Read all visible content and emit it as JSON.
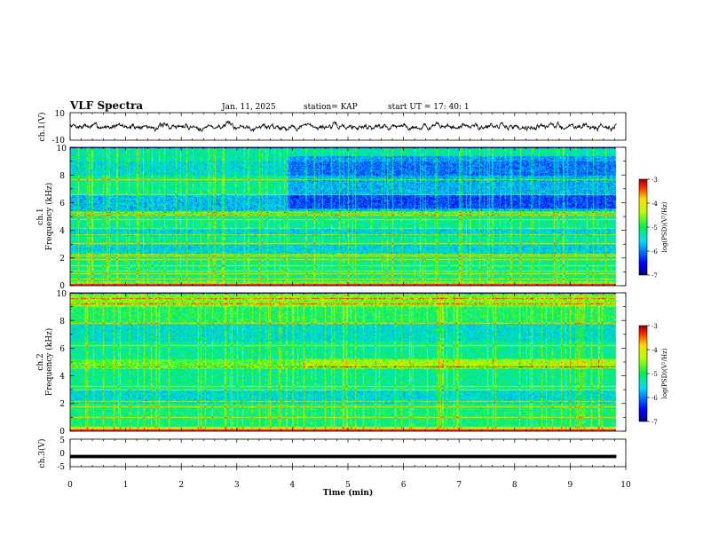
{
  "header": {
    "title": "VLF Spectra",
    "date": "Jan. 11, 2025",
    "station": "station= KAP",
    "start_ut": "start  UT =   17: 40: 1"
  },
  "chart_data": [
    {
      "type": "line",
      "name": "ch1-waveform",
      "ylabel": "ch.1(V)",
      "ylim": [
        -10,
        10
      ],
      "ytick_labels": [
        "10",
        "-10"
      ],
      "xlim": [
        0,
        10
      ],
      "data_end_min": 9.83,
      "noise": {
        "center": 0,
        "amplitude": 5,
        "seed": 7
      }
    },
    {
      "type": "heatmap",
      "name": "ch1-spectrogram",
      "ylabel": "Frequency (kHz)",
      "channel_label": "ch.1",
      "ylim": [
        0,
        10
      ],
      "ytick_labels": [
        "0",
        "2",
        "4",
        "6",
        "8",
        "10"
      ],
      "xlim": [
        0,
        10
      ],
      "data_end_min": 9.83,
      "colorbar": {
        "label": "log(PSD)(V²/Hz)",
        "range": [
          -7,
          -3
        ],
        "tick_labels": [
          "-3",
          "-4",
          "-5",
          "-6",
          "-7"
        ]
      },
      "bands": [
        {
          "from": 0.0,
          "to": 0.35,
          "level": -4.6
        },
        {
          "from": 0.35,
          "to": 2.3,
          "level": -5.15
        },
        {
          "from": 2.3,
          "to": 3.0,
          "level": -5.55
        },
        {
          "from": 3.0,
          "to": 3.6,
          "level": -5.25
        },
        {
          "from": 3.6,
          "to": 4.2,
          "level": -5.55
        },
        {
          "from": 4.2,
          "to": 5.1,
          "level": -5.2
        },
        {
          "from": 5.1,
          "to": 5.4,
          "level": -4.9
        },
        {
          "from": 5.4,
          "to": 6.6,
          "level": -5.7
        },
        {
          "from": 6.6,
          "to": 8.0,
          "level": -5.2
        },
        {
          "from": 8.0,
          "to": 9.0,
          "level": -5.5
        },
        {
          "from": 9.0,
          "to": 10.0,
          "level": -5.3
        }
      ],
      "lines": [
        0.5,
        0.9,
        1.1,
        1.5,
        1.9,
        2.15,
        2.3,
        3.05,
        3.7,
        4.15,
        4.8,
        5.1,
        5.3,
        6.6,
        7.7
      ],
      "late_shift": {
        "from_min": 3.9,
        "from_khz": 5.6,
        "to_khz": 9.4,
        "delta": -0.55
      },
      "spikes": [
        0.15,
        0.4,
        0.7,
        1.2,
        1.7,
        2.1,
        2.6,
        3.4,
        3.9,
        4.4,
        5.0,
        5.8,
        6.3,
        7.0,
        7.5,
        8.1,
        8.7,
        9.3
      ]
    },
    {
      "type": "heatmap",
      "name": "ch2-spectrogram",
      "ylabel": "Frequency (kHz)",
      "channel_label": "ch.2",
      "ylim": [
        0,
        10
      ],
      "ytick_labels": [
        "0",
        "2",
        "4",
        "6",
        "8",
        "10"
      ],
      "xlim": [
        0,
        10
      ],
      "data_end_min": 9.83,
      "colorbar": {
        "label": "log(PSD)(V²/Hz)",
        "range": [
          -7,
          -3
        ],
        "tick_labels": [
          "-3",
          "-4",
          "-5",
          "-6",
          "-7"
        ]
      },
      "bands": [
        {
          "from": 0.0,
          "to": 0.3,
          "level": -4.2
        },
        {
          "from": 0.3,
          "to": 2.0,
          "level": -5.1
        },
        {
          "from": 2.0,
          "to": 3.0,
          "level": -5.5
        },
        {
          "from": 3.0,
          "to": 4.5,
          "level": -5.2
        },
        {
          "from": 4.5,
          "to": 5.2,
          "level": -4.75
        },
        {
          "from": 5.2,
          "to": 6.5,
          "level": -5.2
        },
        {
          "from": 6.5,
          "to": 7.8,
          "level": -5.45
        },
        {
          "from": 7.8,
          "to": 9.0,
          "level": -5.0
        },
        {
          "from": 9.0,
          "to": 10.0,
          "level": -4.6
        }
      ],
      "lines": [
        0.3,
        1.0,
        1.8,
        2.2,
        3.0,
        3.3,
        4.7,
        6.2,
        7.8,
        9.2,
        9.6
      ],
      "late_shift": {
        "from_min": 4.2,
        "from_khz": 4.6,
        "to_khz": 5.3,
        "delta": 0.35
      },
      "spikes": [
        0.3,
        0.9,
        1.6,
        2.3,
        2.9,
        3.6,
        4.2,
        4.9,
        5.5,
        6.1,
        6.9,
        7.6,
        8.3,
        9.0,
        9.5
      ]
    },
    {
      "type": "line",
      "name": "ch3-trace",
      "ylabel": "ch.3(V)",
      "ylim": [
        -5,
        5
      ],
      "ytick_labels": [
        "5",
        "0",
        "-5"
      ],
      "xlim": [
        0,
        10
      ],
      "data_end_min": 9.83,
      "xlabel": "Time (min)",
      "xtick_labels": [
        "0",
        "1",
        "2",
        "3",
        "4",
        "5",
        "6",
        "7",
        "8",
        "9",
        "10"
      ],
      "noise": {
        "center": -1.3,
        "amplitude": 0.3,
        "seed": 3
      }
    }
  ]
}
